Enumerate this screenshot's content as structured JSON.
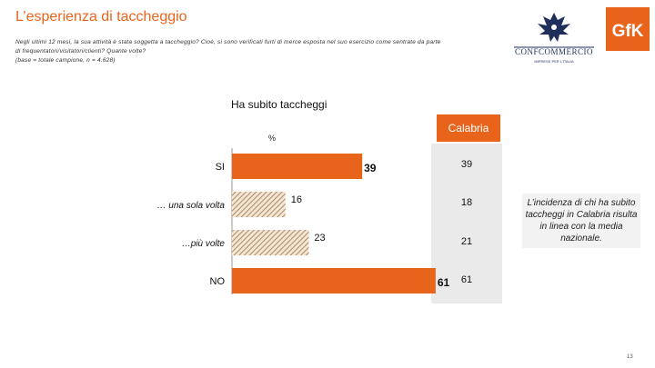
{
  "header": {
    "title": "L’esperienza di taccheggio",
    "question_lines": [
      "Negli ultimi 12 mesi, la sua attività è stata soggetta a taccheggio? Cioè, si sono verificati furti di merce esposta nel suo esercizio come sentrate da parte",
      "di frequentatori/visitatori/clienti? Quante volte?",
      "(base = totale campione, n = 4.628)"
    ]
  },
  "logos": {
    "confcommercio": "CONFCOMMERCIO",
    "confcommercio_tagline": "IMPRESE PER L’ITALIA",
    "gfk": "GfK"
  },
  "colors": {
    "accent": "#e8641b",
    "hatch": "#c8a882",
    "panel": "#eaeaea"
  },
  "chart_data": {
    "type": "bar",
    "orientation": "horizontal",
    "title": "Ha subito taccheggi",
    "unit_label": "%",
    "categories": [
      "SI",
      "… una sola volta",
      "…più volte",
      "NO"
    ],
    "values": [
      39,
      16,
      23,
      61
    ],
    "styles": [
      "solid",
      "hatched",
      "hatched",
      "solid"
    ],
    "xlim": [
      0,
      100
    ],
    "grid": false,
    "legend": "none",
    "comparison": {
      "label": "Calabria",
      "values": [
        39,
        18,
        21,
        61
      ]
    }
  },
  "note": {
    "text": "L’incidenza di chi ha subito taccheggi in Calabria risulta in linea con la media nazionale."
  },
  "page_number": "13"
}
